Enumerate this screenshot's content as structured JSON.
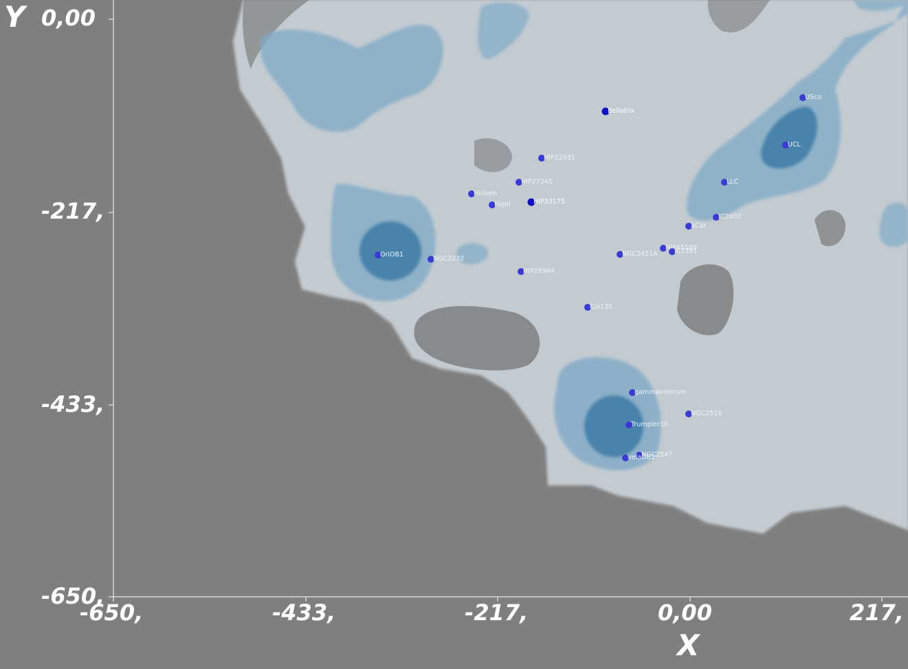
{
  "view": {
    "background": "#7f7f7f",
    "axis_color": "#ffffff",
    "shell_color": "#c9d1d8",
    "shell_edge": "#dde3e8",
    "cloud_mid": "#7fa9c6",
    "cloud_core": "#3d7aa6",
    "star_color": "#3a3ad6",
    "star_dark": "#1010c0"
  },
  "axes": {
    "x_title": "X",
    "y_title": "Y",
    "x_ticks": [
      "-650,",
      "-433,",
      "-217,",
      "0,00",
      "217,"
    ],
    "y_ticks": [
      "0,00",
      "-217,",
      "-433,",
      "-650,"
    ]
  },
  "stars": [
    {
      "label": "Bellatrix",
      "dark": true
    },
    {
      "label": "HIP22931"
    },
    {
      "label": "HIP27345"
    },
    {
      "label": "Hirliam"
    },
    {
      "label": "Rigel"
    },
    {
      "label": "HIP33175",
      "dark": true
    },
    {
      "label": "OriOB1"
    },
    {
      "label": "NGC2232"
    },
    {
      "label": "HIP28944"
    },
    {
      "label": "Col135"
    },
    {
      "label": "NGC2451A"
    },
    {
      "label": "HIP45189"
    },
    {
      "label": "IC2391"
    },
    {
      "label": "aCar"
    },
    {
      "label": "IC2602"
    },
    {
      "label": "LLC"
    },
    {
      "label": "UCL"
    },
    {
      "label": "USco"
    },
    {
      "label": "gammavelorum"
    },
    {
      "label": "NGC2516"
    },
    {
      "label": "Trumpler10"
    },
    {
      "label": "NGC2547"
    },
    {
      "label": "velaOB2"
    }
  ]
}
